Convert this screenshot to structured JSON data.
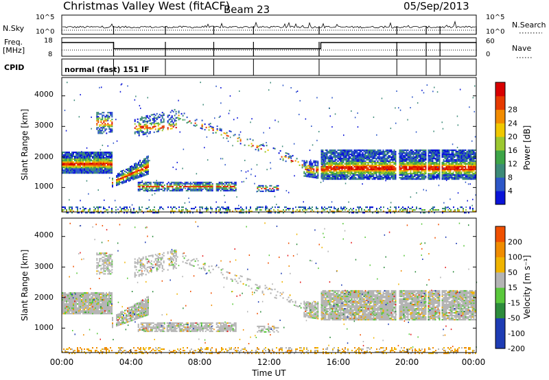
{
  "header": {
    "site": "Christmas Valley West (fitACF)",
    "beam": "Beam 23",
    "date": "05/Sep/2013"
  },
  "panels": {
    "noise": {
      "left_label": "N.Sky",
      "right_label": "N.Search",
      "left_ticks": [
        "10^5",
        "10^0"
      ],
      "right_ticks": [
        "10^5",
        "10^0"
      ]
    },
    "freq": {
      "left_label_1": "Freq.",
      "left_label_2": "[MHz]",
      "right_label": "Nave",
      "left_ticks": [
        "18",
        "8"
      ],
      "right_ticks": [
        "60",
        "0"
      ]
    },
    "cpid": {
      "label": "CPID",
      "text": "normal (fast) 151 IF"
    }
  },
  "chart_data": [
    {
      "type": "heatmap",
      "name": "power",
      "ylabel": "Slant Range [km]",
      "yticks": [
        "1000",
        "2000",
        "3000",
        "4000"
      ],
      "ylim": [
        200,
        4600
      ],
      "colorbar_label": "Power [dB]",
      "colorbar_ticks": [
        "4",
        "8",
        "12",
        "16",
        "20",
        "24",
        "28"
      ],
      "colors": [
        "#0a14d8",
        "#2d57c8",
        "#3c8a78",
        "#3ea548",
        "#9cc830",
        "#f0c800",
        "#f28c00",
        "#e63a00",
        "#d80000"
      ]
    },
    {
      "type": "heatmap",
      "name": "velocity",
      "ylabel": "Slant Range [km]",
      "yticks": [
        "1000",
        "2000",
        "3000",
        "4000"
      ],
      "ylim": [
        200,
        4600
      ],
      "colorbar_label": "Velocity [m s⁻¹]",
      "colorbar_ticks": [
        "200",
        "100",
        "50",
        "15",
        "-15",
        "-50",
        "-100",
        "-200"
      ],
      "colors": [
        "#1e3cb4",
        "#2d8c3c",
        "#5ac83c",
        "#b4b4b4",
        "#f0b400",
        "#f08c00",
        "#f05000",
        "#e61e1e"
      ]
    }
  ],
  "x_axis": {
    "label": "Time UT",
    "ticks": [
      "00:00",
      "04:00",
      "08:00",
      "12:00",
      "16:00",
      "20:00",
      "00:00"
    ]
  }
}
